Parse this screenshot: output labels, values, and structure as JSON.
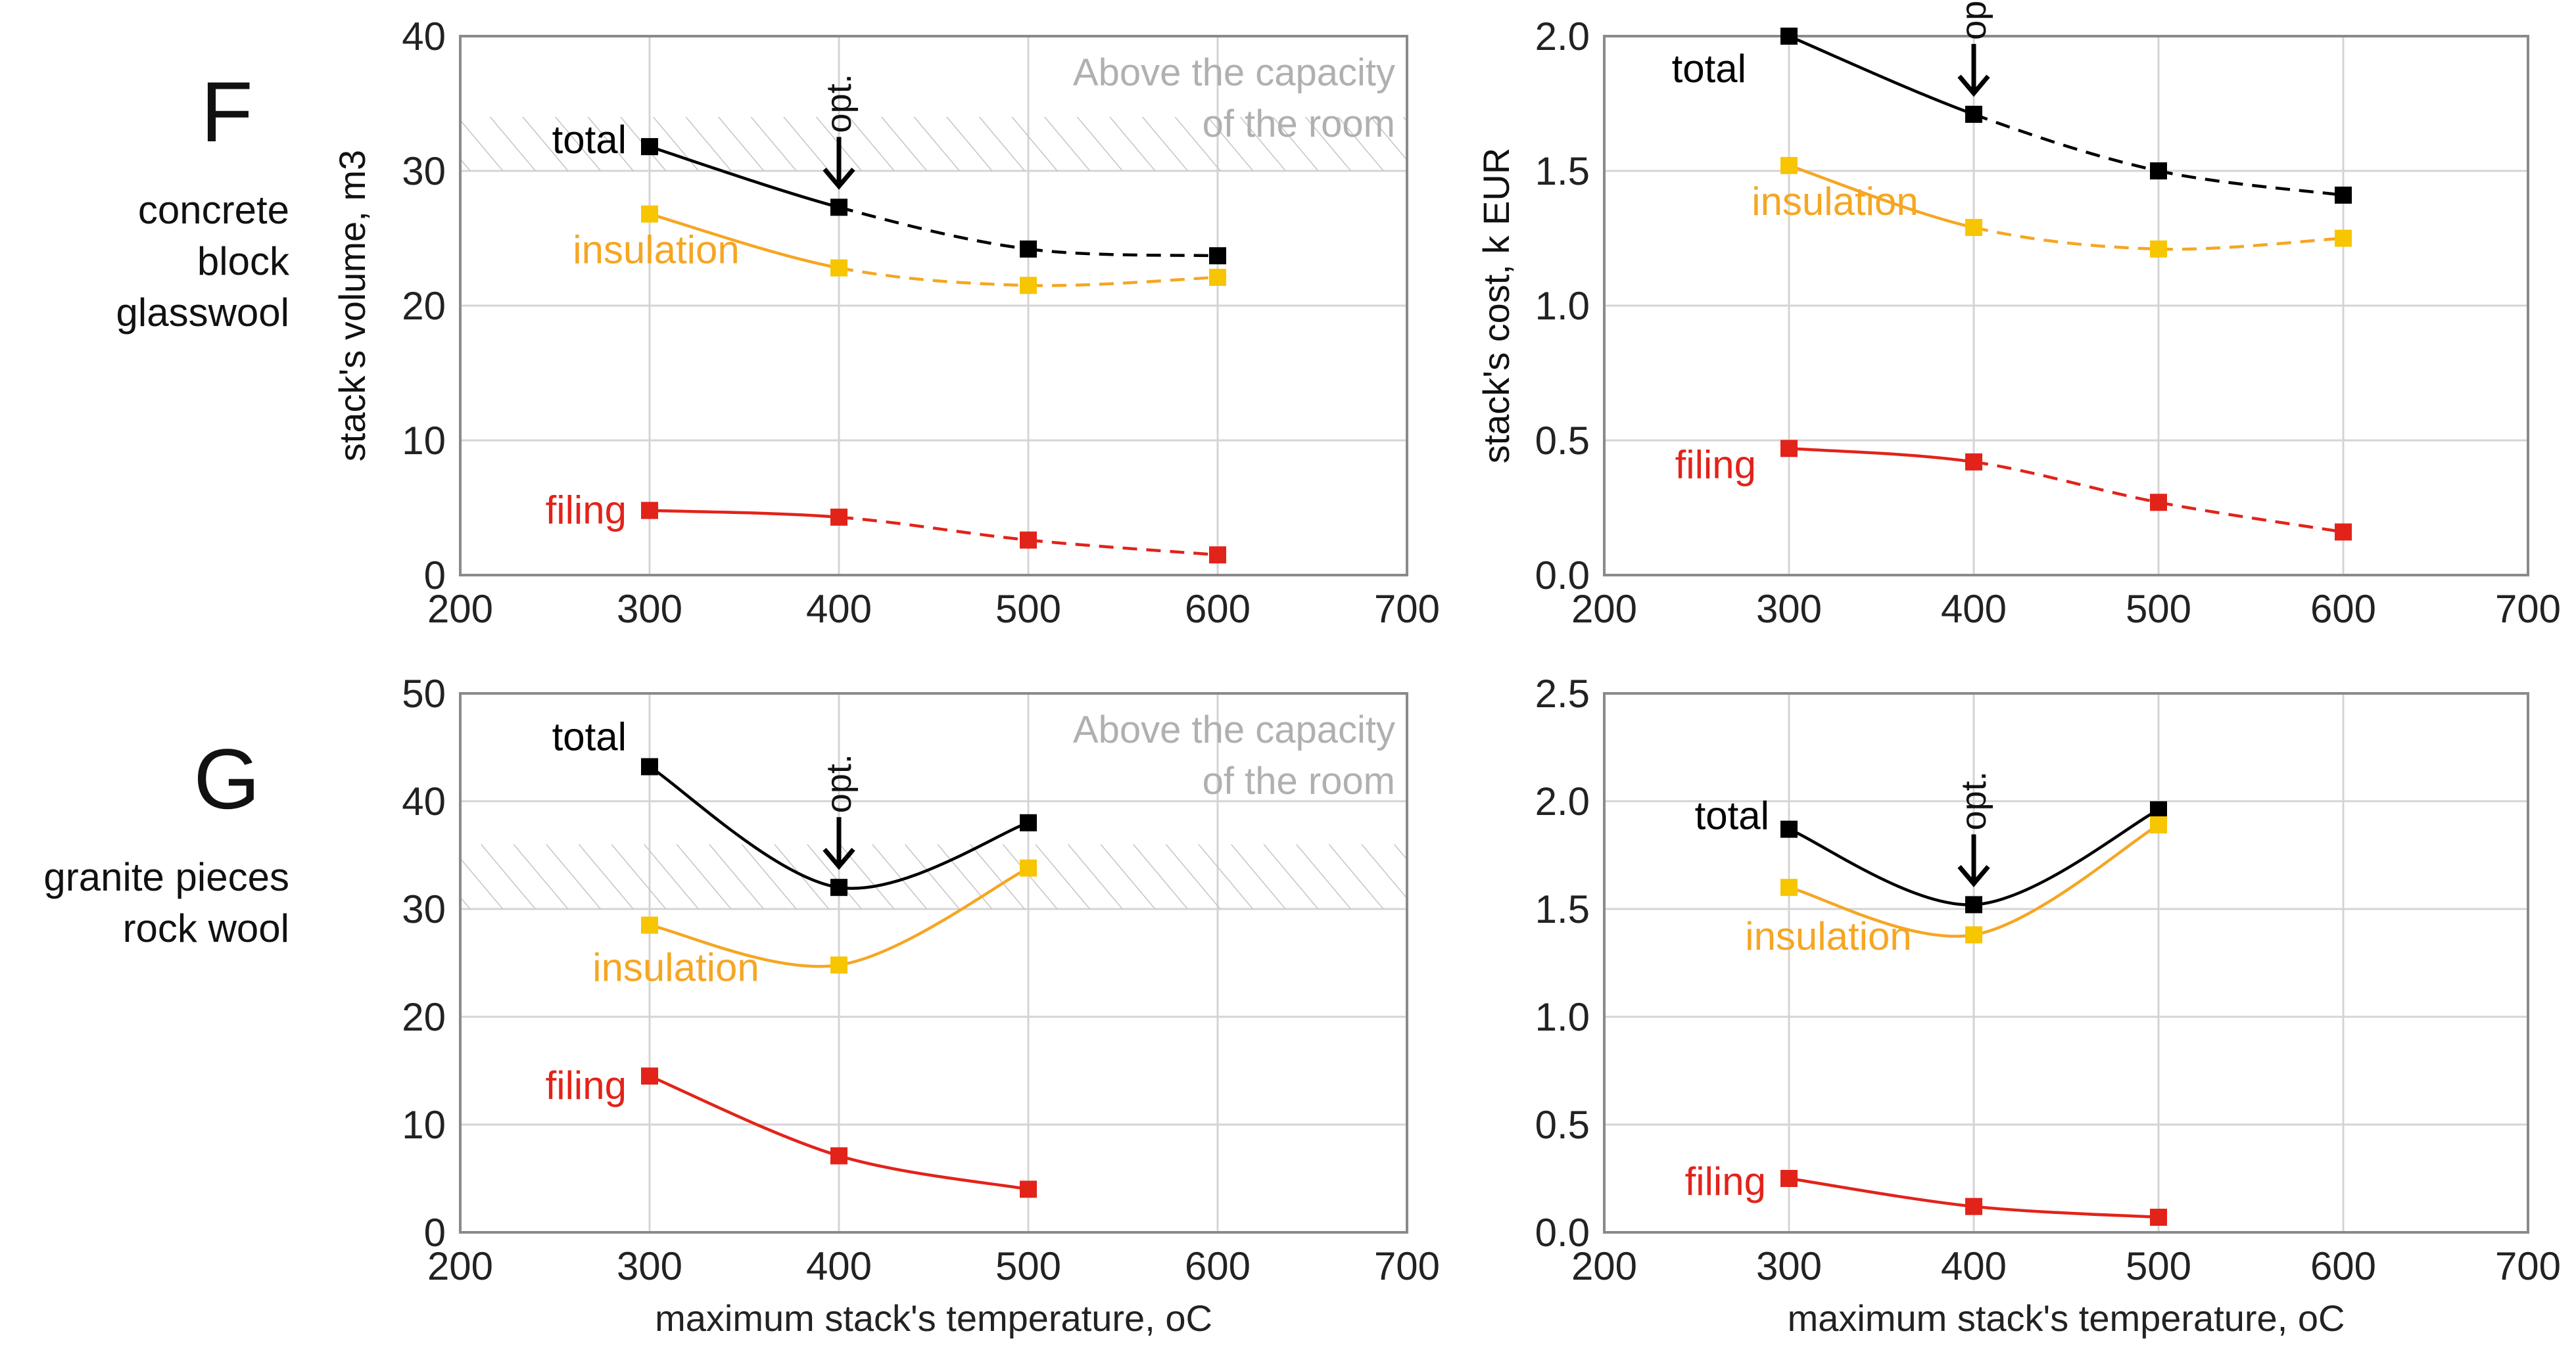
{
  "row_labels": [
    {
      "letter": "F",
      "desc": [
        "concrete",
        "block",
        "glasswool"
      ]
    },
    {
      "letter": "G",
      "desc": [
        "granite pieces",
        "rock wool"
      ]
    }
  ],
  "colors": {
    "total": "#000000",
    "insulation": "#f5a623",
    "insulation_marker": "#f7c600",
    "filing": "#e2231a",
    "hatch": "#c4c4c4",
    "note": "#b0b0b0"
  },
  "chart_data": [
    {
      "id": "F-volume",
      "type": "line",
      "row": "F",
      "xlabel": "",
      "ylabel": "stack's volume, m3",
      "xlim": [
        200,
        700
      ],
      "xticks": [
        200,
        300,
        400,
        500,
        600,
        700
      ],
      "ylim": [
        0,
        40
      ],
      "yticks": [
        0,
        10,
        20,
        30,
        40
      ],
      "solid_until_x": 400,
      "series": [
        {
          "name": "total",
          "x": [
            300,
            400,
            500,
            600
          ],
          "values": [
            31.8,
            27.3,
            24.2,
            23.7
          ]
        },
        {
          "name": "insulation",
          "x": [
            300,
            400,
            500,
            600
          ],
          "values": [
            26.8,
            22.8,
            21.5,
            22.1
          ]
        },
        {
          "name": "filing",
          "x": [
            300,
            400,
            500,
            600
          ],
          "values": [
            4.8,
            4.3,
            2.6,
            1.5
          ]
        }
      ],
      "optimum_x": 400,
      "optimum_label": "opt.",
      "note": [
        "Above the capacity",
        "of the room"
      ],
      "hatch_range": [
        30,
        34
      ]
    },
    {
      "id": "F-cost",
      "type": "line",
      "row": "F",
      "xlabel": "",
      "ylabel": "stack's cost, k EUR",
      "xlim": [
        200,
        700
      ],
      "xticks": [
        200,
        300,
        400,
        500,
        600,
        700
      ],
      "ylim": [
        0,
        2
      ],
      "yticks": [
        0.0,
        0.5,
        1.0,
        1.5,
        2.0
      ],
      "solid_until_x": 400,
      "series": [
        {
          "name": "total",
          "x": [
            300,
            400,
            500,
            600
          ],
          "values": [
            2.0,
            1.71,
            1.5,
            1.41
          ]
        },
        {
          "name": "insulation",
          "x": [
            300,
            400,
            500,
            600
          ],
          "values": [
            1.52,
            1.29,
            1.21,
            1.25
          ]
        },
        {
          "name": "filing",
          "x": [
            300,
            400,
            500,
            600
          ],
          "values": [
            0.47,
            0.42,
            0.27,
            0.16
          ]
        }
      ],
      "optimum_x": 400,
      "optimum_label": "opt."
    },
    {
      "id": "G-volume",
      "type": "line",
      "row": "G",
      "xlabel": "maximum stack's temperature, oC",
      "ylabel": "",
      "xlim": [
        200,
        700
      ],
      "xticks": [
        200,
        300,
        400,
        500,
        600,
        700
      ],
      "ylim": [
        0,
        50
      ],
      "yticks": [
        0,
        10,
        20,
        30,
        40,
        50
      ],
      "solid_until_x": 500,
      "series": [
        {
          "name": "total",
          "x": [
            300,
            400,
            500
          ],
          "values": [
            43.2,
            32.0,
            38.0
          ]
        },
        {
          "name": "insulation",
          "x": [
            300,
            400,
            500
          ],
          "values": [
            28.5,
            24.8,
            33.8
          ]
        },
        {
          "name": "filing",
          "x": [
            300,
            400,
            500
          ],
          "values": [
            14.5,
            7.1,
            4.0
          ]
        }
      ],
      "optimum_x": 400,
      "optimum_label": "opt.",
      "note": [
        "Above the capacity",
        "of the room"
      ],
      "hatch_range": [
        30,
        36
      ]
    },
    {
      "id": "G-cost",
      "type": "line",
      "row": "G",
      "xlabel": "maximum stack's temperature, oC",
      "ylabel": "",
      "xlim": [
        200,
        700
      ],
      "xticks": [
        200,
        300,
        400,
        500,
        600,
        700
      ],
      "ylim": [
        0,
        2.5
      ],
      "yticks": [
        0.0,
        0.5,
        1.0,
        1.5,
        2.0,
        2.5
      ],
      "solid_until_x": 500,
      "series": [
        {
          "name": "total",
          "x": [
            300,
            400,
            500
          ],
          "values": [
            1.87,
            1.52,
            1.96
          ]
        },
        {
          "name": "insulation",
          "x": [
            300,
            400,
            500
          ],
          "values": [
            1.6,
            1.38,
            1.89
          ]
        },
        {
          "name": "filing",
          "x": [
            300,
            400,
            500
          ],
          "values": [
            0.25,
            0.12,
            0.07
          ]
        }
      ],
      "optimum_x": 400,
      "optimum_label": "opt."
    }
  ]
}
